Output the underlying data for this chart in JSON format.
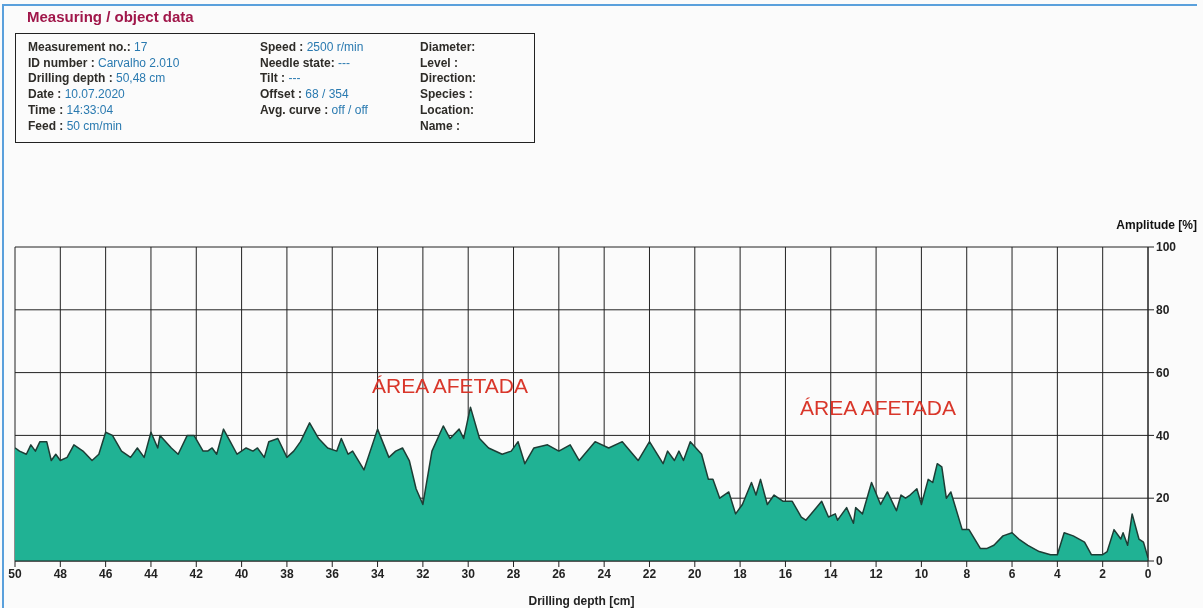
{
  "chart_data": {
    "type": "area",
    "title": "Measuring / object data",
    "annotations": [
      "Measurement no.: 17",
      "ID number : Carvalho 2.010",
      "Drilling depth : 50,48 cm",
      "Date : 10.07.2020",
      "Time : 14:33:04",
      "Feed : 50 cm/min",
      "Speed : 2500 r/min",
      "Needle state: ---",
      "Tilt : ---",
      "Offset : 68 / 354",
      "Avg. curve : off / off",
      "Diameter:",
      "Level :",
      "Direction:",
      "Species :",
      "Location:",
      "Name :",
      "ÁREA AFETADA",
      "ÁREA AFETADA"
    ],
    "xlabel": "Drilling depth [cm]",
    "ylabel": "Amplitude [%]",
    "x": [
      50,
      49.8,
      49.5,
      49.3,
      49.1,
      48.9,
      48.6,
      48.4,
      48.2,
      48,
      47.7,
      47.4,
      47,
      46.6,
      46.3,
      46,
      45.7,
      45.3,
      44.9,
      44.6,
      44.3,
      44,
      43.7,
      43.6,
      43.1,
      42.8,
      42.4,
      42.1,
      41.7,
      41.5,
      41.3,
      41.1,
      40.8,
      40.5,
      40.2,
      39.8,
      39.5,
      39.3,
      39,
      38.8,
      38.4,
      38,
      37.7,
      37.4,
      37,
      36.6,
      36.2,
      35.8,
      35.6,
      35.3,
      35.1,
      34.6,
      34,
      33.5,
      33.2,
      32.9,
      32.6,
      32.3,
      32,
      31.6,
      31.1,
      30.8,
      30.4,
      30.2,
      29.9,
      29.5,
      29.1,
      28.5,
      28.1,
      27.8,
      27.5,
      27.1,
      26.5,
      26,
      25.5,
      25.1,
      24.4,
      23.8,
      23.2,
      22.5,
      22,
      21.4,
      21.2,
      20.9,
      20.7,
      20.5,
      20.2,
      19.7,
      19.4,
      19.2,
      18.9,
      18.5,
      18.2,
      17.9,
      17.5,
      17.3,
      17.1,
      16.8,
      16.5,
      16.1,
      15.7,
      15.3,
      15.1,
      14.4,
      14.1,
      13.8,
      13.7,
      13.3,
      13,
      12.9,
      12.6,
      12.2,
      11.8,
      11.5,
      11.1,
      10.9,
      10.7,
      10.5,
      10.2,
      10,
      9.7,
      9.5,
      9.3,
      9.1,
      8.9,
      8.7,
      8.2,
      7.9,
      7.4,
      7.1,
      6.8,
      6.4,
      6,
      5.7,
      5.3,
      4.8,
      4.3,
      4,
      3.7,
      3.3,
      2.8,
      2.5,
      2,
      1.8,
      1.5,
      1.2,
      1.1,
      0.9,
      0.7,
      0.4,
      0.2,
      0
    ],
    "series": [
      {
        "color": "#20b294",
        "values": [
          36,
          35,
          34,
          37,
          35,
          38,
          38,
          32,
          34,
          32,
          33,
          37,
          35,
          32,
          34,
          41,
          40,
          35,
          33,
          36,
          33,
          41,
          36,
          40,
          36,
          34,
          40,
          40,
          35,
          35,
          36,
          34,
          42,
          38,
          34,
          36,
          35,
          36,
          33,
          38,
          39,
          33,
          35,
          38,
          44,
          39,
          36,
          35,
          39,
          34,
          35,
          29,
          42,
          33,
          35,
          36,
          32,
          23,
          18,
          35,
          43,
          39,
          42,
          39,
          49,
          39,
          36,
          34,
          35,
          38,
          31,
          36,
          37,
          35,
          37,
          32,
          38,
          36,
          38,
          32,
          38,
          31,
          35,
          32,
          35,
          32,
          38,
          34,
          26,
          26,
          20,
          22,
          15,
          18,
          25,
          21,
          26,
          18,
          21,
          19,
          19,
          14,
          13,
          19,
          14,
          15,
          13,
          17,
          12,
          17,
          15,
          25,
          18,
          22,
          16,
          21,
          20,
          21,
          23,
          18,
          26,
          25,
          31,
          30,
          20,
          22,
          10,
          10,
          4,
          4,
          5,
          8,
          9,
          7,
          5,
          3,
          2,
          2,
          9,
          8,
          6,
          2,
          2,
          3,
          10,
          7,
          9,
          5,
          15,
          7,
          6,
          1
        ]
      }
    ],
    "xlim": [
      50,
      0
    ],
    "xticks": [
      50,
      48,
      46,
      44,
      42,
      40,
      38,
      36,
      34,
      32,
      30,
      28,
      26,
      24,
      22,
      20,
      18,
      16,
      14,
      12,
      10,
      8,
      6,
      4,
      2,
      0
    ],
    "ylim": [
      0,
      100
    ],
    "yticks": [
      0,
      20,
      40,
      60,
      80,
      100
    ],
    "grid": true
  }
}
